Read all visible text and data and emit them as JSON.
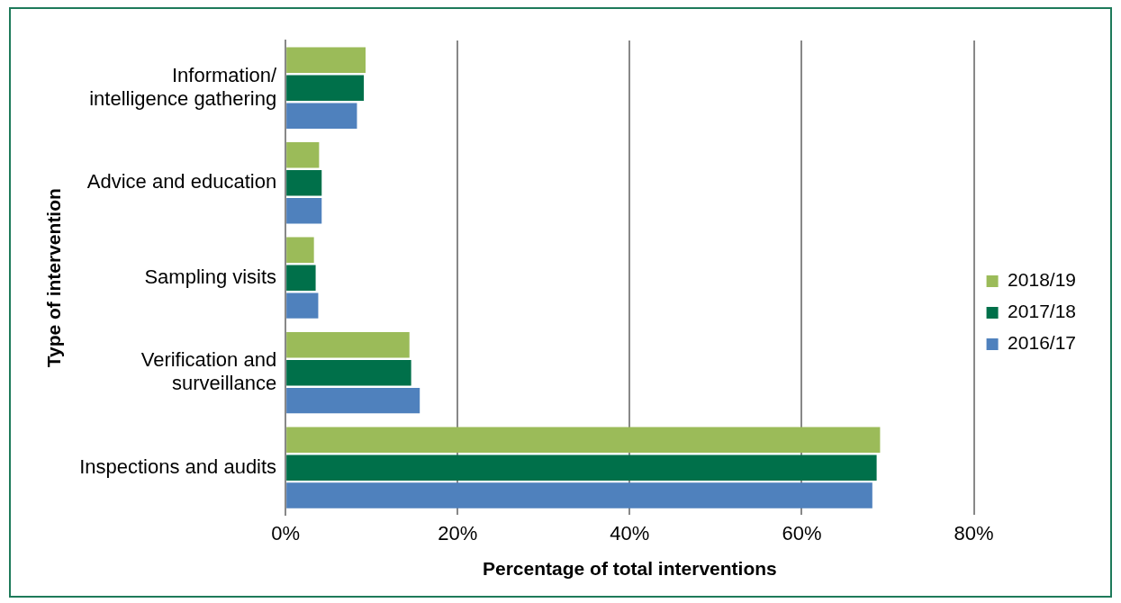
{
  "chart_data": {
    "type": "bar",
    "orientation": "horizontal",
    "xlabel": "Percentage of total interventions",
    "ylabel": "Type of intervention",
    "categories": [
      "Information/ intelligence gathering",
      "Advice and education",
      "Sampling visits",
      "Verification and surveillance",
      "Inspections and audits"
    ],
    "series": [
      {
        "name": "2018/19",
        "color": "#9bbb59",
        "values": [
          9.3,
          3.9,
          3.3,
          14.4,
          69.1
        ]
      },
      {
        "name": "2017/18",
        "color": "#00704a",
        "values": [
          9.1,
          4.2,
          3.5,
          14.6,
          68.7
        ]
      },
      {
        "name": "2016/17",
        "color": "#4f81bd",
        "values": [
          8.3,
          4.2,
          3.8,
          15.6,
          68.2
        ]
      }
    ],
    "xlim": [
      0,
      80
    ],
    "xticks": [
      {
        "value": 0,
        "label": "0%"
      },
      {
        "value": 20,
        "label": "20%"
      },
      {
        "value": 40,
        "label": "40%"
      },
      {
        "value": 60,
        "label": "60%"
      },
      {
        "value": 80,
        "label": "80%"
      }
    ],
    "grid": "x",
    "legend": "right"
  }
}
